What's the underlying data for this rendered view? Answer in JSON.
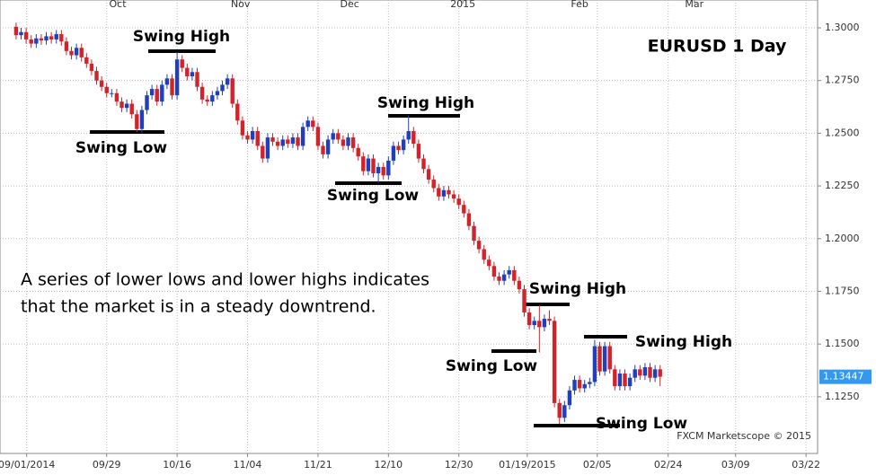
{
  "chart_data": {
    "type": "candlestick",
    "title": "EURUSD 1 Day",
    "annotations": [
      "Swing High",
      "Swing Low",
      "Swing High",
      "Swing Low",
      "Swing High",
      "Swing Low",
      "Swing High",
      "Swing Low"
    ],
    "note_lines": [
      "A series of lower lows and lower highs indicates",
      "that the market is in a steady downtrend."
    ],
    "watermark": "FXCM Marketscope © 2015",
    "last_price": 1.13447,
    "up_color": "#1f3fbf",
    "down_color": "#d2222a",
    "grid": true,
    "xlim": [
      -3.2,
      159.3
    ],
    "ylim": [
      1.0981,
      1.3132
    ],
    "yticks": [
      {
        "value": 1.3,
        "label": "1.3000"
      },
      {
        "value": 1.275,
        "label": "1.2750"
      },
      {
        "value": 1.25,
        "label": "1.2500"
      },
      {
        "value": 1.225,
        "label": "1.2250"
      },
      {
        "value": 1.2,
        "label": "1.2000"
      },
      {
        "value": 1.175,
        "label": "1.1750"
      },
      {
        "value": 1.15,
        "label": "1.1500"
      },
      {
        "value": 1.125,
        "label": "1.1250"
      }
    ],
    "xticks": [
      {
        "value": 2.1,
        "label": "09/01/2014"
      },
      {
        "value": 18,
        "label": "09/29"
      },
      {
        "value": 32,
        "label": "10/16"
      },
      {
        "value": 46,
        "label": "11/04"
      },
      {
        "value": 60,
        "label": "11/21"
      },
      {
        "value": 74,
        "label": "12/10"
      },
      {
        "value": 88,
        "label": "12/30"
      },
      {
        "value": 101.6,
        "label": "01/19/2015"
      },
      {
        "value": 115.5,
        "label": "02/05"
      },
      {
        "value": 129.6,
        "label": "02/24"
      },
      {
        "value": 143,
        "label": "03/09"
      },
      {
        "value": 157,
        "label": "03/22"
      }
    ],
    "x2ticks": [
      {
        "value": 20.2,
        "label": "Oct"
      },
      {
        "value": 44.6,
        "label": "Nov"
      },
      {
        "value": 66.3,
        "label": "Dec"
      },
      {
        "value": 88.8,
        "label": "2015"
      },
      {
        "value": 112,
        "label": "Feb"
      },
      {
        "value": 134.8,
        "label": "Mar"
      }
    ],
    "open": [
      1.3005,
      1.2965,
      1.298,
      1.2945,
      1.2925,
      1.295,
      1.294,
      1.296,
      1.2945,
      1.297,
      1.2935,
      1.289,
      1.287,
      1.2905,
      1.286,
      1.283,
      1.2795,
      1.275,
      1.272,
      1.269,
      1.269,
      1.265,
      1.262,
      1.264,
      1.259,
      1.252,
      1.261,
      1.268,
      1.271,
      1.265,
      1.273,
      1.276,
      1.268,
      1.285,
      1.281,
      1.277,
      1.279,
      1.272,
      1.266,
      1.265,
      1.268,
      1.27,
      1.273,
      1.276,
      1.264,
      1.256,
      1.249,
      1.247,
      1.251,
      1.244,
      1.238,
      1.248,
      1.246,
      1.244,
      1.247,
      1.245,
      1.248,
      1.244,
      1.253,
      1.256,
      1.253,
      1.244,
      1.24,
      1.247,
      1.25,
      1.247,
      1.244,
      1.248,
      1.243,
      1.239,
      1.232,
      1.238,
      1.231,
      1.234,
      1.23,
      1.237,
      1.244,
      1.242,
      1.247,
      1.251,
      1.245,
      1.238,
      1.233,
      1.228,
      1.224,
      1.22,
      1.223,
      1.221,
      1.219,
      1.216,
      1.212,
      1.206,
      1.199,
      1.195,
      1.19,
      1.187,
      1.182,
      1.18,
      1.183,
      1.185,
      1.18,
      1.176,
      1.165,
      1.159,
      1.161,
      1.158,
      1.162,
      1.161,
      1.122,
      1.115,
      1.121,
      1.128,
      1.133,
      1.129,
      1.131,
      1.132,
      1.149,
      1.137,
      1.149,
      1.138,
      1.13,
      1.136,
      1.13,
      1.134,
      1.138,
      1.135,
      1.139,
      1.134,
      1.138
    ],
    "high": [
      1.3025,
      1.3,
      1.3,
      1.2965,
      1.297,
      1.297,
      1.298,
      1.298,
      1.299,
      1.299,
      1.2955,
      1.291,
      1.2925,
      1.2925,
      1.288,
      1.285,
      1.2815,
      1.277,
      1.274,
      1.271,
      1.271,
      1.267,
      1.266,
      1.266,
      1.261,
      1.263,
      1.27,
      1.273,
      1.273,
      1.275,
      1.278,
      1.278,
      1.2885,
      1.287,
      1.283,
      1.281,
      1.281,
      1.274,
      1.268,
      1.27,
      1.272,
      1.275,
      1.278,
      1.278,
      1.266,
      1.258,
      1.251,
      1.253,
      1.253,
      1.246,
      1.25,
      1.25,
      1.248,
      1.249,
      1.249,
      1.25,
      1.25,
      1.255,
      1.258,
      1.258,
      1.255,
      1.246,
      1.249,
      1.252,
      1.252,
      1.249,
      1.25,
      1.25,
      1.245,
      1.241,
      1.24,
      1.24,
      1.236,
      1.236,
      1.239,
      1.246,
      1.246,
      1.249,
      1.2585,
      1.253,
      1.247,
      1.24,
      1.235,
      1.23,
      1.226,
      1.225,
      1.225,
      1.223,
      1.221,
      1.218,
      1.214,
      1.208,
      1.201,
      1.197,
      1.192,
      1.189,
      1.184,
      1.185,
      1.187,
      1.187,
      1.182,
      1.178,
      1.167,
      1.163,
      1.1685,
      1.164,
      1.166,
      1.163,
      1.124,
      1.123,
      1.13,
      1.135,
      1.135,
      1.133,
      1.134,
      1.152,
      1.151,
      1.151,
      1.151,
      1.14,
      1.138,
      1.138,
      1.136,
      1.14,
      1.14,
      1.141,
      1.141,
      1.14,
      1.14
    ],
    "low": [
      1.2945,
      1.2945,
      1.2925,
      1.2905,
      1.2905,
      1.292,
      1.292,
      1.2925,
      1.2925,
      1.2915,
      1.287,
      1.285,
      1.285,
      1.284,
      1.281,
      1.2775,
      1.273,
      1.27,
      1.267,
      1.267,
      1.263,
      1.26,
      1.26,
      1.257,
      1.2505,
      1.25,
      1.259,
      1.266,
      1.263,
      1.263,
      1.271,
      1.266,
      1.266,
      1.279,
      1.275,
      1.275,
      1.27,
      1.264,
      1.263,
      1.263,
      1.266,
      1.268,
      1.271,
      1.262,
      1.254,
      1.247,
      1.245,
      1.245,
      1.242,
      1.236,
      1.236,
      1.244,
      1.242,
      1.242,
      1.243,
      1.243,
      1.242,
      1.242,
      1.251,
      1.251,
      1.242,
      1.238,
      1.238,
      1.245,
      1.245,
      1.242,
      1.242,
      1.241,
      1.237,
      1.23,
      1.23,
      1.229,
      1.2265,
      1.228,
      1.228,
      1.235,
      1.24,
      1.24,
      1.245,
      1.243,
      1.236,
      1.231,
      1.226,
      1.222,
      1.218,
      1.218,
      1.219,
      1.217,
      1.214,
      1.21,
      1.204,
      1.197,
      1.193,
      1.188,
      1.185,
      1.18,
      1.178,
      1.178,
      1.181,
      1.178,
      1.174,
      1.163,
      1.157,
      1.157,
      1.146,
      1.156,
      1.159,
      1.12,
      1.112,
      1.113,
      1.119,
      1.126,
      1.127,
      1.127,
      1.129,
      1.13,
      1.135,
      1.135,
      1.136,
      1.128,
      1.128,
      1.128,
      1.128,
      1.132,
      1.133,
      1.133,
      1.132,
      1.132,
      1.13
    ],
    "close": [
      1.2965,
      1.298,
      1.2945,
      1.2925,
      1.295,
      1.294,
      1.296,
      1.2945,
      1.297,
      1.2935,
      1.289,
      1.287,
      1.2905,
      1.286,
      1.283,
      1.2795,
      1.275,
      1.272,
      1.269,
      1.269,
      1.265,
      1.262,
      1.264,
      1.259,
      1.252,
      1.261,
      1.268,
      1.271,
      1.265,
      1.273,
      1.276,
      1.268,
      1.285,
      1.281,
      1.277,
      1.279,
      1.272,
      1.266,
      1.265,
      1.268,
      1.27,
      1.273,
      1.276,
      1.264,
      1.256,
      1.249,
      1.247,
      1.251,
      1.244,
      1.238,
      1.248,
      1.246,
      1.244,
      1.247,
      1.245,
      1.248,
      1.244,
      1.253,
      1.256,
      1.253,
      1.244,
      1.24,
      1.247,
      1.25,
      1.247,
      1.244,
      1.248,
      1.243,
      1.239,
      1.232,
      1.238,
      1.231,
      1.234,
      1.23,
      1.237,
      1.244,
      1.242,
      1.247,
      1.251,
      1.245,
      1.238,
      1.233,
      1.228,
      1.224,
      1.22,
      1.223,
      1.221,
      1.219,
      1.216,
      1.212,
      1.206,
      1.199,
      1.195,
      1.19,
      1.187,
      1.182,
      1.18,
      1.183,
      1.185,
      1.18,
      1.176,
      1.165,
      1.159,
      1.161,
      1.158,
      1.162,
      1.161,
      1.122,
      1.115,
      1.121,
      1.128,
      1.133,
      1.129,
      1.131,
      1.132,
      1.149,
      1.137,
      1.149,
      1.138,
      1.13,
      1.136,
      1.13,
      1.134,
      1.138,
      1.135,
      1.139,
      1.134,
      1.138,
      1.1345
    ]
  }
}
